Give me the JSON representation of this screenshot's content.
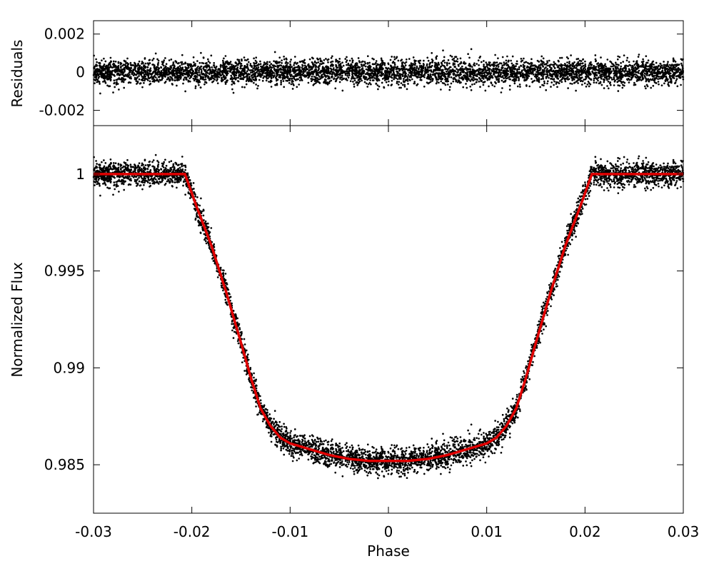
{
  "chart_data": [
    {
      "panel": "residuals",
      "type": "scatter",
      "title": "",
      "ylabel": "Residuals",
      "xlim": [
        -0.03,
        0.03
      ],
      "ylim": [
        -0.0028,
        0.0027
      ],
      "yticks": [
        -0.002,
        0,
        0.002
      ],
      "ytick_labels": [
        "-0.002",
        "0",
        "0.002"
      ],
      "grid": false,
      "series": [
        {
          "kind": "points",
          "color": "#000000",
          "noise_sigma": 0.00032,
          "x_range": [
            -0.03,
            0.03
          ],
          "mean": 0
        }
      ]
    },
    {
      "panel": "transit",
      "type": "scatter",
      "title": "",
      "xlabel": "Phase",
      "ylabel": "Normalized Flux",
      "xlim": [
        -0.03,
        0.03
      ],
      "ylim": [
        0.9825,
        1.0025
      ],
      "xticks": [
        -0.03,
        -0.02,
        -0.01,
        0,
        0.01,
        0.02,
        0.03
      ],
      "xtick_labels": [
        "-0.03",
        "-0.02",
        "-0.01",
        "0",
        "0.01",
        "0.02",
        "0.03"
      ],
      "yticks": [
        0.985,
        0.99,
        0.995,
        1
      ],
      "ytick_labels": [
        "0.985",
        "0.99",
        "0.995",
        "1"
      ],
      "grid": false,
      "series": [
        {
          "kind": "points",
          "color": "#000000",
          "noise_sigma": 0.00032
        },
        {
          "kind": "model-line",
          "color": "#e00000",
          "x": [
            -0.03,
            -0.0207,
            -0.0195,
            -0.018,
            -0.0165,
            -0.015,
            -0.014,
            -0.013,
            -0.012,
            -0.011,
            -0.01,
            -0.008,
            -0.006,
            -0.004,
            -0.002,
            0,
            0.002,
            0.004,
            0.006,
            0.008,
            0.01,
            0.011,
            0.012,
            0.013,
            0.014,
            0.015,
            0.0165,
            0.018,
            0.0195,
            0.0207,
            0.03
          ],
          "y": [
            1.0,
            1.0,
            0.9983,
            0.9963,
            0.9939,
            0.9913,
            0.9895,
            0.9879,
            0.987,
            0.9864,
            0.9861,
            0.9858,
            0.9855,
            0.9853,
            0.9852,
            0.9852,
            0.9852,
            0.9853,
            0.9855,
            0.9858,
            0.9861,
            0.9864,
            0.987,
            0.9879,
            0.9895,
            0.9913,
            0.9939,
            0.9963,
            0.9983,
            1.0,
            1.0
          ]
        }
      ]
    }
  ]
}
